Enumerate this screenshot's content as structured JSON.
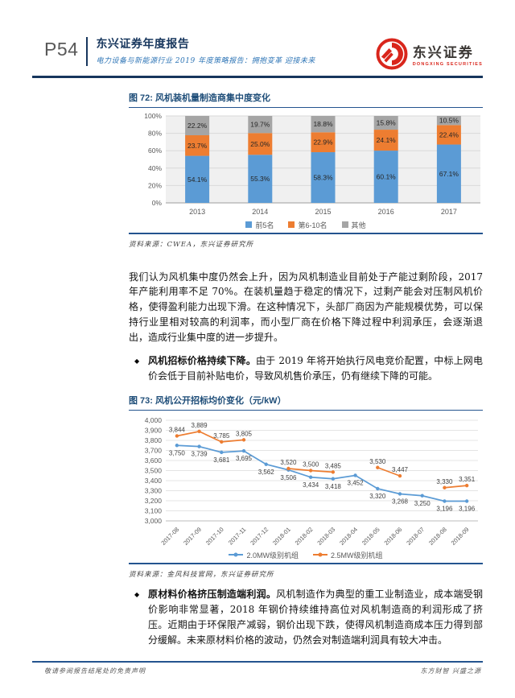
{
  "header": {
    "page_number": "P54",
    "report_title": "东兴证券年度报告",
    "report_subtitle": "电力设备与新能源行业 2019 年度策略报告：拥抱变革 迎接未来",
    "logo": {
      "name": "东兴证券",
      "name_en": "DONGXING SECURITIES"
    }
  },
  "figure72": {
    "title": "图 72: 风机装机量制造商集中度变化",
    "source": "资料来源：CWEA，东兴证券研究所"
  },
  "paragraph1": "我们认为风机集中度仍然会上升，因为风机制造业目前处于产能过剩阶段，2017 年产能利用率不足 70%。在装机量趋于稳定的情况下，过剩产能会对压制风机价格，使得盈利能力出现下滑。在这种情况下，头部厂商因为产能规模优势，可以保持行业里相对较高的利润率，而小型厂商在价格下降过程中利润承压，会逐渐退出，造成行业集中度的进一步提升。",
  "bullet1": {
    "marker": "◆",
    "lead": "风机招标价格持续下降。",
    "text": "由于 2019 年将开始执行风电竞价配置，中标上网电价会低于目前补贴电价，导致风机售价承压，仍有继续下降的可能。"
  },
  "figure73": {
    "title": "图 73: 风机公开招标均价变化（元/kW）",
    "source": "资料来源：金风科技官网，东兴证券研究所"
  },
  "bullet2": {
    "marker": "◆",
    "lead": "原材料价格挤压制造端利润。",
    "text": "风机制造作为典型的重工业制造业，成本端受钢价影响非常显著，2018 年钢价持续维持高位对风机制造商的利润形成了挤压。近期由于环保限产减弱，钢价出现下跌，使得风机制造商成本压力得到部分缓解。未来原材料价格的波动，仍然会对制造端利润具有较大冲击。"
  },
  "footer": {
    "left": "敬请参阅报告结尾处的免责声明",
    "right": "东方财智 兴盛之源"
  },
  "colors": {
    "navy": "#17365d",
    "subtitle_blue": "#2e75b6",
    "logo_red": "#d9261c",
    "series_blue": "#5b9bd5",
    "series_orange": "#ed7d31",
    "series_gray": "#a5a5a5"
  },
  "chart_data": [
    {
      "type": "bar",
      "stacked": true,
      "title": "图 72: 风机装机量制造商集中度变化",
      "categories": [
        "2013",
        "2014",
        "2015",
        "2016",
        "2017"
      ],
      "series": [
        {
          "name": "前5名",
          "color": "#5b9bd5",
          "values": [
            54.1,
            55.3,
            58.3,
            60.1,
            67.1
          ]
        },
        {
          "name": "第6-10名",
          "color": "#ed7d31",
          "values": [
            23.7,
            25.0,
            22.9,
            24.1,
            22.4
          ]
        },
        {
          "name": "其他",
          "color": "#a5a5a5",
          "values": [
            22.2,
            19.7,
            18.8,
            15.8,
            10.5
          ]
        }
      ],
      "ylabel": "",
      "xlabel": "",
      "ylim": [
        0,
        100
      ],
      "ytick_step": 20,
      "ytick_suffix": "%",
      "grid": true,
      "legend_position": "bottom",
      "label_format": "percent1"
    },
    {
      "type": "line",
      "title": "图 73: 风机公开招标均价变化（元/kW）",
      "categories": [
        "2017-08",
        "2017-09",
        "2017-10",
        "2017-11",
        "2017-12",
        "2018-01",
        "2018-02",
        "2018-03",
        "2018-04",
        "2018-05",
        "2018-06",
        "2018-07",
        "2018-08",
        "2018-09"
      ],
      "series": [
        {
          "name": "2.0MW级别机组",
          "color": "#5b9bd5",
          "values": [
            3750,
            3739,
            3681,
            3695,
            3562,
            3506,
            3434,
            3418,
            3452,
            3320,
            3268,
            3250,
            3196,
            3196
          ]
        },
        {
          "name": "2.5MW级别机组",
          "color": "#ed7d31",
          "values": [
            3844,
            3889,
            3785,
            3805,
            null,
            3520,
            3500,
            3485,
            null,
            3530,
            3447,
            null,
            3330,
            3351
          ]
        }
      ],
      "ylabel": "元/kW",
      "xlabel": "",
      "ylim": [
        3000,
        4000
      ],
      "ytick_step": 100,
      "grid": true,
      "legend_position": "bottom",
      "label_format": "thousands"
    }
  ]
}
